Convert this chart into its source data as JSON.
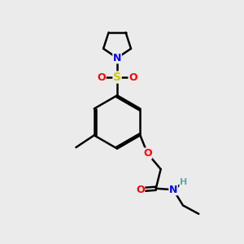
{
  "background_color": "#ebebeb",
  "bond_color": "#000000",
  "bond_width": 1.8,
  "figsize": [
    3.0,
    3.0
  ],
  "dpi": 100,
  "atom_colors": {
    "N": "#0000ff",
    "O": "#ff0000",
    "S": "#cccc00",
    "H": "#5fa8a8",
    "C": "#000000"
  },
  "font_size": 9,
  "xlim": [
    0,
    10
  ],
  "ylim": [
    0,
    10
  ]
}
